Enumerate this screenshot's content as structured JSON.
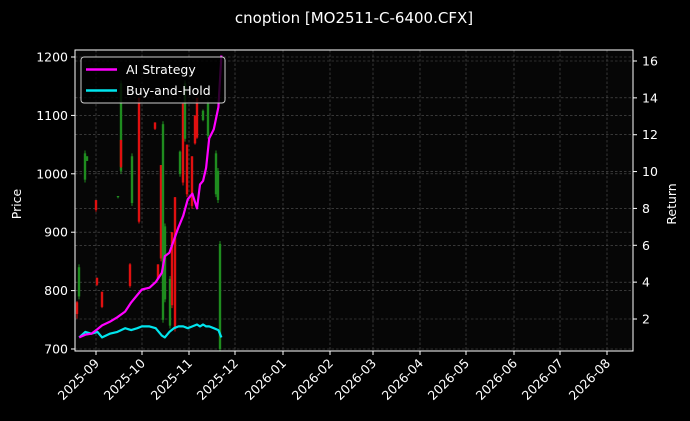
{
  "chart_data": {
    "type": "line",
    "title": "cnoption [MO2511-C-6400.CFX]",
    "xlabel": "",
    "ylabel": "Price",
    "y2label": "Return",
    "ylim": [
      697,
      1205
    ],
    "y2lim": [
      0.4,
      16.5
    ],
    "grid": true,
    "legend_position": "upper left",
    "x_tick_labels": [
      "2025-09",
      "2025-10",
      "2025-11",
      "2025-12",
      "2026-01",
      "2026-02",
      "2026-03",
      "2026-04",
      "2026-05",
      "2026-06",
      "2026-07",
      "2026-08"
    ],
    "y_ticks": [
      700,
      800,
      900,
      1000,
      1100,
      1200
    ],
    "y2_ticks": [
      2,
      4,
      6,
      8,
      10,
      12,
      14,
      16
    ],
    "legend": [
      "AI Strategy",
      "Buy-and-Hold"
    ],
    "colors": {
      "ai_strategy": "#ff00ff",
      "buy_and_hold": "#00e5ee",
      "up": "#1f8c1f",
      "down": "#e01010",
      "background": "#000000",
      "text": "#ffffff"
    },
    "series": [
      {
        "name": "AI Strategy",
        "axis": "right",
        "dates": [
          "2025-08-21",
          "2025-08-25",
          "2025-08-29",
          "2025-09-02",
          "2025-09-05",
          "2025-09-10",
          "2025-09-15",
          "2025-09-20",
          "2025-09-24",
          "2025-09-28",
          "2025-10-01",
          "2025-10-06",
          "2025-10-10",
          "2025-10-14",
          "2025-10-16",
          "2025-10-19",
          "2025-10-22",
          "2025-10-25",
          "2025-10-28",
          "2025-10-31",
          "2025-11-03",
          "2025-11-06",
          "2025-11-08",
          "2025-11-10",
          "2025-11-12",
          "2025-11-14",
          "2025-11-17",
          "2025-11-20",
          "2025-11-22"
        ],
        "values": [
          1.0,
          1.15,
          1.2,
          1.45,
          1.65,
          1.85,
          2.1,
          2.4,
          2.9,
          3.3,
          3.6,
          3.7,
          4.0,
          4.5,
          5.4,
          5.6,
          6.3,
          7.0,
          7.6,
          8.5,
          8.8,
          8.0,
          9.3,
          9.5,
          10.2,
          11.8,
          12.3,
          13.5,
          16.3
        ]
      },
      {
        "name": "Buy-and-Hold",
        "axis": "right",
        "dates": [
          "2025-08-21",
          "2025-08-25",
          "2025-08-29",
          "2025-09-02",
          "2025-09-05",
          "2025-09-10",
          "2025-09-15",
          "2025-09-20",
          "2025-09-24",
          "2025-09-28",
          "2025-10-01",
          "2025-10-06",
          "2025-10-10",
          "2025-10-14",
          "2025-10-16",
          "2025-10-19",
          "2025-10-22",
          "2025-10-25",
          "2025-10-28",
          "2025-10-31",
          "2025-11-03",
          "2025-11-06",
          "2025-11-08",
          "2025-11-10",
          "2025-11-12",
          "2025-11-14",
          "2025-11-17",
          "2025-11-20",
          "2025-11-22"
        ],
        "values": [
          1.0,
          1.3,
          1.2,
          1.3,
          1.0,
          1.2,
          1.3,
          1.5,
          1.4,
          1.5,
          1.6,
          1.6,
          1.5,
          1.1,
          1.0,
          1.3,
          1.5,
          1.6,
          1.6,
          1.5,
          1.6,
          1.7,
          1.6,
          1.7,
          1.6,
          1.6,
          1.5,
          1.4,
          1.0
        ]
      }
    ],
    "candles": [
      {
        "x": 77,
        "high": 782,
        "low": 752,
        "open": 780,
        "close": 760,
        "dir": "down"
      },
      {
        "x": 79,
        "high": 845,
        "low": 785,
        "open": 790,
        "close": 840,
        "dir": "up"
      },
      {
        "x": 85,
        "high": 1040,
        "low": 985,
        "open": 990,
        "close": 1035,
        "dir": "up"
      },
      {
        "x": 87,
        "high": 1030,
        "low": 1022,
        "open": 1022,
        "close": 1030,
        "dir": "up"
      },
      {
        "x": 96,
        "high": 955,
        "low": 935,
        "open": 955,
        "close": 938,
        "dir": "down"
      },
      {
        "x": 97,
        "high": 822,
        "low": 808,
        "open": 822,
        "close": 810,
        "dir": "down"
      },
      {
        "x": 102,
        "high": 798,
        "low": 770,
        "open": 798,
        "close": 772,
        "dir": "down"
      },
      {
        "x": 118,
        "high": 962,
        "low": 958,
        "open": 962,
        "close": 960,
        "dir": "up"
      },
      {
        "x": 121,
        "high": 1160,
        "low": 1000,
        "open": 1005,
        "close": 1155,
        "dir": "up"
      },
      {
        "x": 121,
        "high": 1058,
        "low": 1010,
        "open": 1058,
        "close": 1012,
        "dir": "down"
      },
      {
        "x": 130,
        "high": 847,
        "low": 805,
        "open": 845,
        "close": 808,
        "dir": "down"
      },
      {
        "x": 132,
        "high": 1035,
        "low": 945,
        "open": 950,
        "close": 1030,
        "dir": "up"
      },
      {
        "x": 139,
        "high": 1130,
        "low": 915,
        "open": 1130,
        "close": 918,
        "dir": "down"
      },
      {
        "x": 155,
        "high": 1088,
        "low": 1075,
        "open": 1088,
        "close": 1077,
        "dir": "down"
      },
      {
        "x": 158,
        "high": 845,
        "low": 818,
        "open": 845,
        "close": 820,
        "dir": "down"
      },
      {
        "x": 161,
        "high": 1015,
        "low": 850,
        "open": 1015,
        "close": 855,
        "dir": "down"
      },
      {
        "x": 163,
        "high": 1090,
        "low": 745,
        "open": 750,
        "close": 1085,
        "dir": "up"
      },
      {
        "x": 165,
        "high": 915,
        "low": 780,
        "open": 785,
        "close": 910,
        "dir": "up"
      },
      {
        "x": 170,
        "high": 825,
        "low": 735,
        "open": 740,
        "close": 820,
        "dir": "up"
      },
      {
        "x": 172,
        "high": 900,
        "low": 770,
        "open": 900,
        "close": 775,
        "dir": "down"
      },
      {
        "x": 175,
        "high": 960,
        "low": 730,
        "open": 960,
        "close": 735,
        "dir": "down"
      },
      {
        "x": 180,
        "high": 1040,
        "low": 995,
        "open": 1000,
        "close": 1038,
        "dir": "up"
      },
      {
        "x": 183,
        "high": 1120,
        "low": 980,
        "open": 1120,
        "close": 985,
        "dir": "down"
      },
      {
        "x": 185,
        "high": 1160,
        "low": 1055,
        "open": 1060,
        "close": 1155,
        "dir": "up"
      },
      {
        "x": 187,
        "high": 1050,
        "low": 960,
        "open": 1050,
        "close": 965,
        "dir": "down"
      },
      {
        "x": 192,
        "high": 1030,
        "low": 940,
        "open": 1030,
        "close": 945,
        "dir": "down"
      },
      {
        "x": 195,
        "high": 1100,
        "low": 1050,
        "open": 1100,
        "close": 1052,
        "dir": "down"
      },
      {
        "x": 197,
        "high": 1130,
        "low": 1060,
        "open": 1130,
        "close": 1062,
        "dir": "down"
      },
      {
        "x": 203,
        "high": 1110,
        "low": 1090,
        "open": 1092,
        "close": 1108,
        "dir": "up"
      },
      {
        "x": 208,
        "high": 1125,
        "low": 1060,
        "open": 1065,
        "close": 1120,
        "dir": "up"
      },
      {
        "x": 216,
        "high": 1040,
        "low": 960,
        "open": 965,
        "close": 1035,
        "dir": "up"
      },
      {
        "x": 218,
        "high": 1010,
        "low": 950,
        "open": 955,
        "close": 1005,
        "dir": "up"
      },
      {
        "x": 220,
        "high": 885,
        "low": 697,
        "open": 700,
        "close": 880,
        "dir": "up"
      }
    ]
  }
}
